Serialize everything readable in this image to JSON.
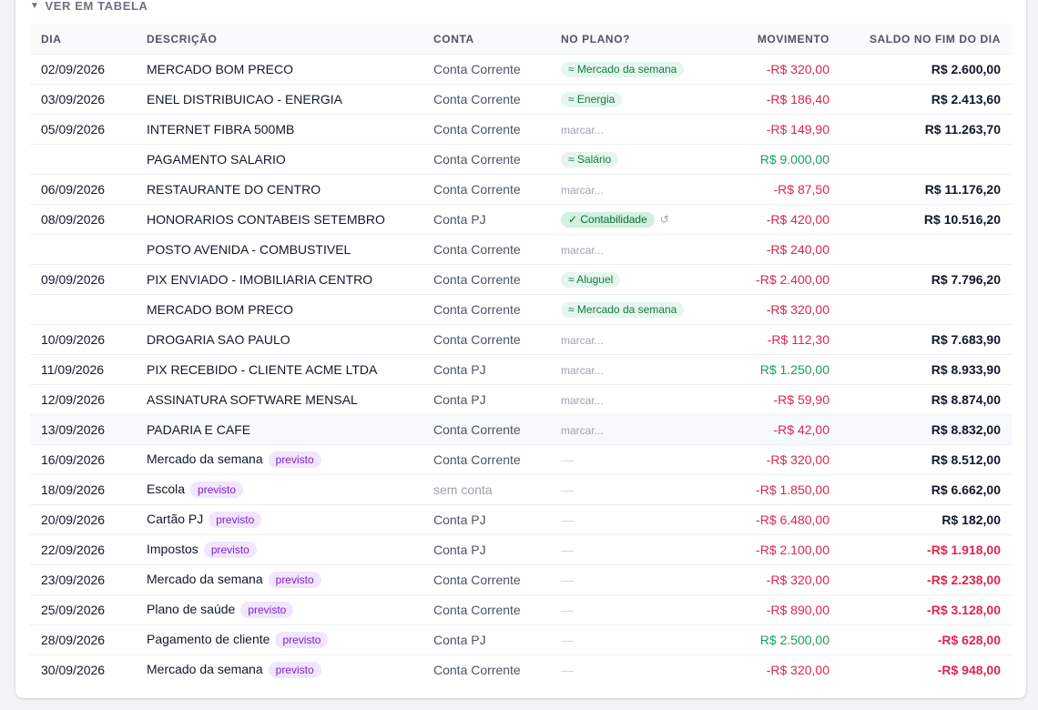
{
  "toggle": {
    "icon": "triangle-down-icon",
    "label": "VER EM TABELA"
  },
  "columns": {
    "dia": "DIA",
    "descricao": "DESCRIÇÃO",
    "conta": "CONTA",
    "no_plano": "NO PLANO?",
    "movimento": "MOVIMENTO",
    "saldo": "SALDO NO FIM DO DIA"
  },
  "colors": {
    "negative": "#dc2650",
    "positive": "#16a05a",
    "badge": "#7e22ce",
    "pill": "#137a44"
  },
  "rows": [
    {
      "dia": "02/09/2026",
      "desc": "MERCADO BOM PRECO",
      "conta": "Conta Corrente",
      "plano": {
        "kind": "pill",
        "text": "≈ Mercado da semana"
      },
      "mov": "-R$ 320,00",
      "mov_sign": "neg",
      "saldo": "R$ 2.600,00",
      "saldo_sign": "pos"
    },
    {
      "dia": "03/09/2026",
      "desc": "ENEL DISTRIBUICAO - ENERGIA",
      "conta": "Conta Corrente",
      "plano": {
        "kind": "pill",
        "text": "≈ Energia"
      },
      "mov": "-R$ 186,40",
      "mov_sign": "neg",
      "saldo": "R$ 2.413,60",
      "saldo_sign": "pos"
    },
    {
      "dia": "05/09/2026",
      "desc": "INTERNET FIBRA 500MB",
      "conta": "Conta Corrente",
      "plano": {
        "kind": "marcar",
        "text": "marcar..."
      },
      "mov": "-R$ 149,90",
      "mov_sign": "neg",
      "saldo": "R$ 11.263,70",
      "saldo_sign": "pos"
    },
    {
      "dia": "",
      "desc": "PAGAMENTO SALARIO",
      "conta": "Conta Corrente",
      "plano": {
        "kind": "pill",
        "text": "≈ Salário"
      },
      "mov": "R$ 9.000,00",
      "mov_sign": "pos",
      "saldo": "",
      "saldo_sign": "pos"
    },
    {
      "dia": "06/09/2026",
      "desc": "RESTAURANTE DO CENTRO",
      "conta": "Conta Corrente",
      "plano": {
        "kind": "marcar",
        "text": "marcar..."
      },
      "mov": "-R$ 87,50",
      "mov_sign": "neg",
      "saldo": "R$ 11.176,20",
      "saldo_sign": "pos"
    },
    {
      "dia": "08/09/2026",
      "desc": "HONORARIOS CONTABEIS SETEMBRO",
      "conta": "Conta PJ",
      "plano": {
        "kind": "confirmed",
        "text": "✓ Contabilidade",
        "undo": "↺"
      },
      "mov": "-R$ 420,00",
      "mov_sign": "neg",
      "saldo": "R$ 10.516,20",
      "saldo_sign": "pos"
    },
    {
      "dia": "",
      "desc": "POSTO AVENIDA - COMBUSTIVEL",
      "conta": "Conta Corrente",
      "plano": {
        "kind": "marcar",
        "text": "marcar..."
      },
      "mov": "-R$ 240,00",
      "mov_sign": "neg",
      "saldo": "",
      "saldo_sign": "pos"
    },
    {
      "dia": "09/09/2026",
      "desc": "PIX ENVIADO - IMOBILIARIA CENTRO",
      "conta": "Conta Corrente",
      "plano": {
        "kind": "pill",
        "text": "≈ Aluguel"
      },
      "mov": "-R$ 2.400,00",
      "mov_sign": "neg",
      "saldo": "R$ 7.796,20",
      "saldo_sign": "pos"
    },
    {
      "dia": "",
      "desc": "MERCADO BOM PRECO",
      "conta": "Conta Corrente",
      "plano": {
        "kind": "pill",
        "text": "≈ Mercado da semana"
      },
      "mov": "-R$ 320,00",
      "mov_sign": "neg",
      "saldo": "",
      "saldo_sign": "pos"
    },
    {
      "dia": "10/09/2026",
      "desc": "DROGARIA SAO PAULO",
      "conta": "Conta Corrente",
      "plano": {
        "kind": "marcar",
        "text": "marcar..."
      },
      "mov": "-R$ 112,30",
      "mov_sign": "neg",
      "saldo": "R$ 7.683,90",
      "saldo_sign": "pos"
    },
    {
      "dia": "11/09/2026",
      "desc": "PIX RECEBIDO - CLIENTE ACME LTDA",
      "conta": "Conta PJ",
      "plano": {
        "kind": "marcar",
        "text": "marcar..."
      },
      "mov": "R$ 1.250,00",
      "mov_sign": "pos",
      "saldo": "R$ 8.933,90",
      "saldo_sign": "pos"
    },
    {
      "dia": "12/09/2026",
      "desc": "ASSINATURA SOFTWARE MENSAL",
      "conta": "Conta PJ",
      "plano": {
        "kind": "marcar",
        "text": "marcar..."
      },
      "mov": "-R$ 59,90",
      "mov_sign": "neg",
      "saldo": "R$ 8.874,00",
      "saldo_sign": "pos"
    },
    {
      "dia": "13/09/2026",
      "desc": "PADARIA E CAFE",
      "conta": "Conta Corrente",
      "plano": {
        "kind": "marcar",
        "text": "marcar..."
      },
      "mov": "-R$ 42,00",
      "mov_sign": "neg",
      "saldo": "R$ 8.832,00",
      "saldo_sign": "pos",
      "highlight": true
    },
    {
      "dia": "16/09/2026",
      "desc": "Mercado da semana",
      "badge": "previsto",
      "conta": "Conta Corrente",
      "plano": {
        "kind": "dash",
        "text": "—"
      },
      "mov": "-R$ 320,00",
      "mov_sign": "neg",
      "saldo": "R$ 8.512,00",
      "saldo_sign": "pos"
    },
    {
      "dia": "18/09/2026",
      "desc": "Escola",
      "badge": "previsto",
      "conta": "sem conta",
      "conta_muted": true,
      "plano": {
        "kind": "dash",
        "text": "—"
      },
      "mov": "-R$ 1.850,00",
      "mov_sign": "neg",
      "saldo": "R$ 6.662,00",
      "saldo_sign": "pos"
    },
    {
      "dia": "20/09/2026",
      "desc": "Cartão PJ",
      "badge": "previsto",
      "conta": "Conta PJ",
      "plano": {
        "kind": "dash",
        "text": "—"
      },
      "mov": "-R$ 6.480,00",
      "mov_sign": "neg",
      "saldo": "R$ 182,00",
      "saldo_sign": "pos"
    },
    {
      "dia": "22/09/2026",
      "desc": "Impostos",
      "badge": "previsto",
      "conta": "Conta PJ",
      "plano": {
        "kind": "dash",
        "text": "—"
      },
      "mov": "-R$ 2.100,00",
      "mov_sign": "neg",
      "saldo": "-R$ 1.918,00",
      "saldo_sign": "neg"
    },
    {
      "dia": "23/09/2026",
      "desc": "Mercado da semana",
      "badge": "previsto",
      "conta": "Conta Corrente",
      "plano": {
        "kind": "dash",
        "text": "—"
      },
      "mov": "-R$ 320,00",
      "mov_sign": "neg",
      "saldo": "-R$ 2.238,00",
      "saldo_sign": "neg"
    },
    {
      "dia": "25/09/2026",
      "desc": "Plano de saúde",
      "badge": "previsto",
      "conta": "Conta Corrente",
      "plano": {
        "kind": "dash",
        "text": "—"
      },
      "mov": "-R$ 890,00",
      "mov_sign": "neg",
      "saldo": "-R$ 3.128,00",
      "saldo_sign": "neg"
    },
    {
      "dia": "28/09/2026",
      "desc": "Pagamento de cliente",
      "badge": "previsto",
      "conta": "Conta PJ",
      "plano": {
        "kind": "dash",
        "text": "—"
      },
      "mov": "R$ 2.500,00",
      "mov_sign": "pos",
      "saldo": "-R$ 628,00",
      "saldo_sign": "neg"
    },
    {
      "dia": "30/09/2026",
      "desc": "Mercado da semana",
      "badge": "previsto",
      "conta": "Conta Corrente",
      "plano": {
        "kind": "dash",
        "text": "—"
      },
      "mov": "-R$ 320,00",
      "mov_sign": "neg",
      "saldo": "-R$ 948,00",
      "saldo_sign": "neg"
    }
  ]
}
